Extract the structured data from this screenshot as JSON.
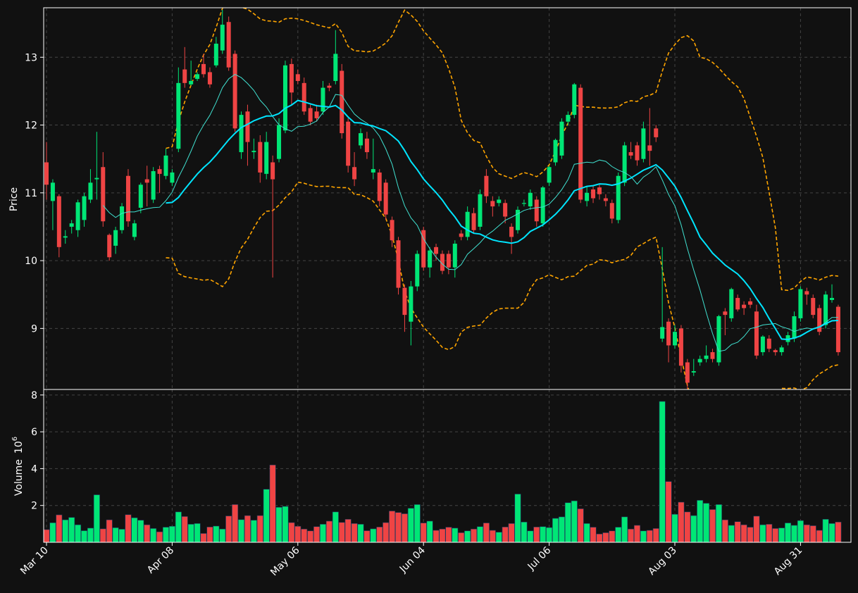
{
  "chart_data": {
    "type": "candlestick",
    "grid": true,
    "colors": {
      "background": "#111111",
      "up": "#00e676",
      "down": "#ef4444",
      "sma_fast": "#40e0d0",
      "sma_slow": "#00e5ff",
      "bollinger": "#ffa500",
      "axes": "#ffffff",
      "grid": "#444444"
    },
    "x_tick_labels": [
      "Mar 10",
      "Apr 08",
      "May 06",
      "Jun 04",
      "Jul 06",
      "Aug 03",
      "Aug 31"
    ],
    "price_panel": {
      "ylabel": "Price",
      "ylim": [
        8.1,
        13.73
      ],
      "yticks": [
        9,
        10,
        11,
        12,
        13
      ]
    },
    "volume_panel": {
      "ylabel": "Volume",
      "scale_label": "10",
      "scale_exponent": "6",
      "ylim": [
        0,
        8.3
      ],
      "yticks": [
        2,
        4,
        6,
        8
      ]
    },
    "candles": [
      [
        11.45,
        11.12,
        11.75,
        10.9,
        0.69
      ],
      [
        10.88,
        11.15,
        11.2,
        10.45,
        1.06
      ],
      [
        10.95,
        10.2,
        10.98,
        10.05,
        1.49
      ],
      [
        10.34,
        10.36,
        10.45,
        10.25,
        1.22
      ],
      [
        10.5,
        10.55,
        10.6,
        10.4,
        1.35
      ],
      [
        10.45,
        10.86,
        10.9,
        10.35,
        0.95
      ],
      [
        10.6,
        10.95,
        11.0,
        10.5,
        0.63
      ],
      [
        10.9,
        11.15,
        11.35,
        10.85,
        0.77
      ],
      [
        11.2,
        11.22,
        11.9,
        10.9,
        2.58
      ],
      [
        11.38,
        10.58,
        11.6,
        10.5,
        0.73
      ],
      [
        10.38,
        10.05,
        10.4,
        10.0,
        1.22
      ],
      [
        10.22,
        10.45,
        10.5,
        10.1,
        0.79
      ],
      [
        10.45,
        10.8,
        10.85,
        10.4,
        0.71
      ],
      [
        11.25,
        10.58,
        11.35,
        10.5,
        1.5
      ],
      [
        10.35,
        10.55,
        10.6,
        10.3,
        1.33
      ],
      [
        10.78,
        11.12,
        11.15,
        10.7,
        1.2
      ],
      [
        11.2,
        11.15,
        11.4,
        10.8,
        0.95
      ],
      [
        10.9,
        11.32,
        11.38,
        10.85,
        0.75
      ],
      [
        11.35,
        11.28,
        11.4,
        11.0,
        0.57
      ],
      [
        11.25,
        11.55,
        11.65,
        11.2,
        0.82
      ],
      [
        11.15,
        11.3,
        11.35,
        11.1,
        0.87
      ],
      [
        11.65,
        12.62,
        12.85,
        11.6,
        1.65
      ],
      [
        12.82,
        12.62,
        13.15,
        12.55,
        1.4
      ],
      [
        12.6,
        12.65,
        12.95,
        12.58,
        0.98
      ],
      [
        12.68,
        12.75,
        12.78,
        12.65,
        1.02
      ],
      [
        12.9,
        12.75,
        13.05,
        12.7,
        0.48
      ],
      [
        12.78,
        12.6,
        12.85,
        12.55,
        0.83
      ],
      [
        12.88,
        13.2,
        13.3,
        12.85,
        0.88
      ],
      [
        13.1,
        13.48,
        13.7,
        13.05,
        0.72
      ],
      [
        13.52,
        12.85,
        13.6,
        12.8,
        1.43
      ],
      [
        13.05,
        11.95,
        13.1,
        11.9,
        2.05
      ],
      [
        11.6,
        12.15,
        12.2,
        11.5,
        1.23
      ],
      [
        12.2,
        11.75,
        12.3,
        11.4,
        1.45
      ],
      [
        11.6,
        11.62,
        11.8,
        11.5,
        1.2
      ],
      [
        11.75,
        11.3,
        11.85,
        11.15,
        1.45
      ],
      [
        11.28,
        11.75,
        11.9,
        11.2,
        2.88
      ],
      [
        11.45,
        11.2,
        11.55,
        9.75,
        4.2
      ],
      [
        11.5,
        12.0,
        12.1,
        11.45,
        1.9
      ],
      [
        11.92,
        12.88,
        12.95,
        11.88,
        1.95
      ],
      [
        12.9,
        12.48,
        12.98,
        12.3,
        1.07
      ],
      [
        12.75,
        12.65,
        12.82,
        12.6,
        0.87
      ],
      [
        12.62,
        12.2,
        12.7,
        12.15,
        0.72
      ],
      [
        12.25,
        12.05,
        12.3,
        12.0,
        0.62
      ],
      [
        12.2,
        12.1,
        12.3,
        12.05,
        0.85
      ],
      [
        12.2,
        12.55,
        12.65,
        12.15,
        0.98
      ],
      [
        12.58,
        12.55,
        12.62,
        12.5,
        1.15
      ],
      [
        12.65,
        13.05,
        13.4,
        12.6,
        1.65
      ],
      [
        12.8,
        11.88,
        12.9,
        11.8,
        1.08
      ],
      [
        12.05,
        11.4,
        12.1,
        11.3,
        1.25
      ],
      [
        11.38,
        11.2,
        11.6,
        11.1,
        1.02
      ],
      [
        11.7,
        11.88,
        11.95,
        11.65,
        0.98
      ],
      [
        11.8,
        11.6,
        11.9,
        11.5,
        0.63
      ],
      [
        11.3,
        11.35,
        11.8,
        11.2,
        0.73
      ],
      [
        11.3,
        10.88,
        11.35,
        10.8,
        0.83
      ],
      [
        11.15,
        10.68,
        11.2,
        10.6,
        1.07
      ],
      [
        10.6,
        10.3,
        10.65,
        10.2,
        1.7
      ],
      [
        10.3,
        9.6,
        10.35,
        9.5,
        1.62
      ],
      [
        9.6,
        9.2,
        9.65,
        8.95,
        1.55
      ],
      [
        9.1,
        9.62,
        9.7,
        8.75,
        1.85
      ],
      [
        9.62,
        10.1,
        10.15,
        9.55,
        2.05
      ],
      [
        10.45,
        9.9,
        10.5,
        9.85,
        1.05
      ],
      [
        9.9,
        10.15,
        10.2,
        9.75,
        1.15
      ],
      [
        10.2,
        10.1,
        10.25,
        10.0,
        0.65
      ],
      [
        10.1,
        9.85,
        10.15,
        9.8,
        0.72
      ],
      [
        10.1,
        9.9,
        10.15,
        9.8,
        0.82
      ],
      [
        9.9,
        10.25,
        10.3,
        9.75,
        0.77
      ],
      [
        10.4,
        10.35,
        10.45,
        10.3,
        0.52
      ],
      [
        10.35,
        10.72,
        10.8,
        10.3,
        0.62
      ],
      [
        10.7,
        10.45,
        10.78,
        10.4,
        0.72
      ],
      [
        10.5,
        10.98,
        11.05,
        10.45,
        0.85
      ],
      [
        11.25,
        10.95,
        11.35,
        10.85,
        1.05
      ],
      [
        10.88,
        10.8,
        10.95,
        10.65,
        0.65
      ],
      [
        10.85,
        10.9,
        10.95,
        10.8,
        0.55
      ],
      [
        10.85,
        10.65,
        10.9,
        10.55,
        0.83
      ],
      [
        10.5,
        10.35,
        10.55,
        10.1,
        1.02
      ],
      [
        10.45,
        10.75,
        10.8,
        10.4,
        2.62
      ],
      [
        10.85,
        10.85,
        10.9,
        10.8,
        1.1
      ],
      [
        10.8,
        11.0,
        11.05,
        10.75,
        0.62
      ],
      [
        10.9,
        10.58,
        10.95,
        10.5,
        0.83
      ],
      [
        10.55,
        11.08,
        11.1,
        10.5,
        0.85
      ],
      [
        11.15,
        11.38,
        11.4,
        11.1,
        0.8
      ],
      [
        11.45,
        11.78,
        11.8,
        11.4,
        1.3
      ],
      [
        11.55,
        12.05,
        12.1,
        11.5,
        1.38
      ],
      [
        12.05,
        12.15,
        12.2,
        12.0,
        2.15
      ],
      [
        12.15,
        12.6,
        12.62,
        12.1,
        2.25
      ],
      [
        12.55,
        10.9,
        12.6,
        10.85,
        1.82
      ],
      [
        10.88,
        11.0,
        11.1,
        10.8,
        1.02
      ],
      [
        11.05,
        10.92,
        11.1,
        10.85,
        0.82
      ],
      [
        11.08,
        10.98,
        11.12,
        10.9,
        0.45
      ],
      [
        10.92,
        10.88,
        10.98,
        10.8,
        0.52
      ],
      [
        10.85,
        10.62,
        10.9,
        10.55,
        0.62
      ],
      [
        10.6,
        11.25,
        11.3,
        10.55,
        0.82
      ],
      [
        11.15,
        11.7,
        11.75,
        11.1,
        1.38
      ],
      [
        11.6,
        11.55,
        11.75,
        11.5,
        0.72
      ],
      [
        11.7,
        11.48,
        11.75,
        11.4,
        0.92
      ],
      [
        11.5,
        11.95,
        12.05,
        11.45,
        0.62
      ],
      [
        11.7,
        11.62,
        12.25,
        11.4,
        0.65
      ],
      [
        11.95,
        11.82,
        12.0,
        11.75,
        0.75
      ],
      [
        8.85,
        9.02,
        10.2,
        8.8,
        7.65
      ],
      [
        9.1,
        8.75,
        9.15,
        8.5,
        3.3
      ],
      [
        8.75,
        8.95,
        9.05,
        8.7,
        1.52
      ],
      [
        9.0,
        8.45,
        9.05,
        8.35,
        2.18
      ],
      [
        8.5,
        8.2,
        8.55,
        8.1,
        1.65
      ],
      [
        8.35,
        8.37,
        8.55,
        8.3,
        1.45
      ],
      [
        8.5,
        8.55,
        8.6,
        8.45,
        2.28
      ],
      [
        8.55,
        8.6,
        8.75,
        8.5,
        2.12
      ],
      [
        8.65,
        8.55,
        8.7,
        8.5,
        1.78
      ],
      [
        8.5,
        9.18,
        9.2,
        8.45,
        2.05
      ],
      [
        9.25,
        9.2,
        9.3,
        8.9,
        1.22
      ],
      [
        9.15,
        9.58,
        9.6,
        9.1,
        0.92
      ],
      [
        9.45,
        9.28,
        9.5,
        9.25,
        1.12
      ],
      [
        9.35,
        9.3,
        9.4,
        9.2,
        0.95
      ],
      [
        9.4,
        9.35,
        9.45,
        9.3,
        0.82
      ],
      [
        9.25,
        8.6,
        9.35,
        8.55,
        1.42
      ],
      [
        8.65,
        8.88,
        8.9,
        8.6,
        0.95
      ],
      [
        8.85,
        8.7,
        8.9,
        8.65,
        0.98
      ],
      [
        8.68,
        8.65,
        8.7,
        8.6,
        0.75
      ],
      [
        8.65,
        8.72,
        8.75,
        8.6,
        0.78
      ],
      [
        8.8,
        8.9,
        8.95,
        8.75,
        1.05
      ],
      [
        8.85,
        9.18,
        9.25,
        8.8,
        0.92
      ],
      [
        9.15,
        9.58,
        9.62,
        9.1,
        1.18
      ],
      [
        9.55,
        9.5,
        9.6,
        9.35,
        0.95
      ],
      [
        9.45,
        9.2,
        9.5,
        9.15,
        0.9
      ],
      [
        9.3,
        8.95,
        9.35,
        8.9,
        0.65
      ],
      [
        9.05,
        9.5,
        9.55,
        9.0,
        1.25
      ],
      [
        9.42,
        9.45,
        9.65,
        9.38,
        1.02
      ],
      [
        9.32,
        8.65,
        9.35,
        8.6,
        1.1
      ]
    ]
  }
}
